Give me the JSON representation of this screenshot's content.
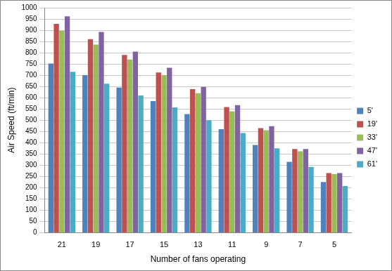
{
  "chart_data": {
    "type": "bar",
    "x_label": "Number of fans operating",
    "y_label": "Air Speed (ft/min)",
    "categories": [
      "21",
      "19",
      "17",
      "15",
      "13",
      "11",
      "9",
      "7",
      "5"
    ],
    "series": [
      {
        "name": "5'",
        "color": "#4f81bd",
        "values": [
          752,
          700,
          645,
          585,
          527,
          460,
          390,
          315,
          225
        ]
      },
      {
        "name": "19'",
        "color": "#c0504d",
        "values": [
          928,
          860,
          790,
          712,
          638,
          558,
          465,
          372,
          265
        ]
      },
      {
        "name": "33'",
        "color": "#9bbb59",
        "values": [
          898,
          836,
          770,
          700,
          620,
          540,
          455,
          362,
          260
        ]
      },
      {
        "name": "47'",
        "color": "#8064a2",
        "values": [
          962,
          892,
          805,
          733,
          648,
          567,
          473,
          372,
          265
        ]
      },
      {
        "name": "61'",
        "color": "#4bacc6",
        "values": [
          715,
          662,
          610,
          557,
          500,
          443,
          375,
          292,
          207
        ]
      }
    ],
    "ylim": [
      0,
      1000
    ],
    "yticks": [
      0,
      50,
      100,
      150,
      200,
      250,
      300,
      350,
      400,
      450,
      500,
      550,
      600,
      650,
      700,
      750,
      800,
      850,
      900,
      950,
      1000
    ],
    "grid": true,
    "legend": "right"
  }
}
